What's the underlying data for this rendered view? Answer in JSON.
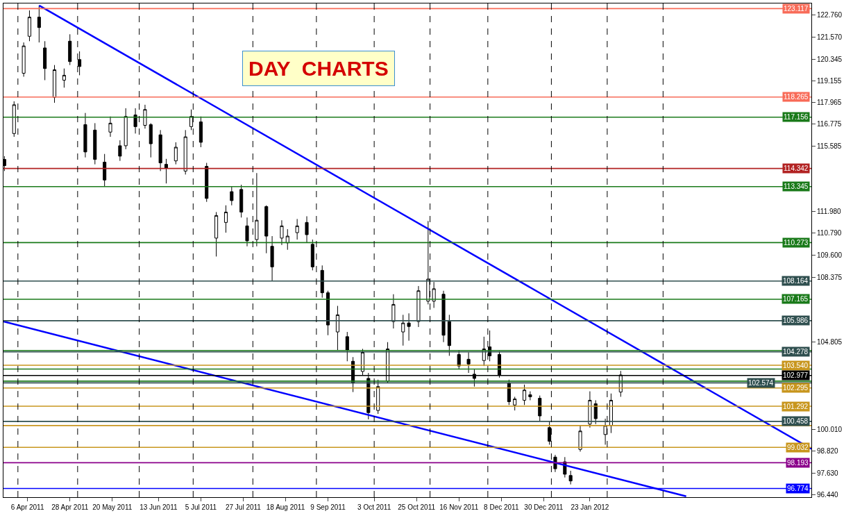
{
  "chart_data": {
    "type": "candlestick",
    "annotations": [
      "DAY  CHARTS"
    ],
    "xlim": [
      "2011-03-24T12:00",
      "2012-05-17"
    ],
    "xticks": [
      {
        "value": "2011-04-06",
        "label": "6 Apr 2011"
      },
      {
        "value": "2011-04-28",
        "label": "28 Apr 2011"
      },
      {
        "value": "2011-05-20",
        "label": "20 May 2011"
      },
      {
        "value": "2011-06-13",
        "label": "13 Jun 2011"
      },
      {
        "value": "2011-07-05",
        "label": "5 Jul 2011"
      },
      {
        "value": "2011-07-27",
        "label": "27 Jul 2011"
      },
      {
        "value": "2011-08-18",
        "label": "18 Aug 2011"
      },
      {
        "value": "2011-09-09",
        "label": "9 Sep 2011"
      },
      {
        "value": "2011-10-03",
        "label": "3 Oct 2011"
      },
      {
        "value": "2011-10-25",
        "label": "25 Oct 2011"
      },
      {
        "value": "2011-11-16",
        "label": "16 Nov 2011"
      },
      {
        "value": "2011-12-08",
        "label": "8 Dec 2011"
      },
      {
        "value": "2011-12-30",
        "label": "30 Dec 2011"
      },
      {
        "value": "2012-01-23",
        "label": "23 Jan 2012"
      }
    ],
    "ylim": [
      96.3,
      123.4
    ],
    "yticks": [
      {
        "value": 122.76,
        "label": "122.760"
      },
      {
        "value": 121.57,
        "label": "121.570"
      },
      120.345,
      119.155,
      117.965,
      116.775,
      115.585,
      {
        "value": 111.98,
        "label": "111.980"
      },
      {
        "value": 110.79,
        "label": "110.790"
      },
      {
        "value": 109.6,
        "label": "109.600"
      },
      108.375,
      104.805,
      {
        "value": 100.01,
        "label": "100.010"
      },
      {
        "value": 98.82,
        "label": "98.820"
      },
      {
        "value": 97.63,
        "label": "97.630"
      },
      {
        "value": 96.44,
        "label": "96.440"
      }
    ],
    "series": [
      {
        "type": "line",
        "color": "#0000ff",
        "x": [
          "2011-04-12",
          "2012-05-17"
        ],
        "values": [
          123.29,
          98.95
        ]
      },
      {
        "type": "line",
        "color": "#0000ff",
        "x": [
          "2011-03-24T12:00",
          "2012-03-13"
        ],
        "values": [
          105.94,
          96.35
        ]
      },
      {
        "color": "#000000",
        "x": [
          "2011-03-25",
          "2011-03-30",
          "2011-04-04",
          "2011-04-07",
          "2011-04-12",
          "2011-04-15",
          "2011-04-20",
          "2011-04-25",
          "2011-04-28",
          "2011-05-03",
          "2011-05-06",
          "2011-05-11",
          "2011-05-16",
          "2011-05-19",
          "2011-05-24",
          "2011-05-27",
          "2011-06-01",
          "2011-06-06",
          "2011-06-09",
          "2011-06-14",
          "2011-06-17",
          "2011-06-22",
          "2011-06-27",
          "2011-06-30",
          "2011-07-05",
          "2011-07-08",
          "2011-07-13",
          "2011-07-18",
          "2011-07-21",
          "2011-07-26",
          "2011-07-29",
          "2011-08-03",
          "2011-08-08",
          "2011-08-11",
          "2011-08-16",
          "2011-08-19",
          "2011-08-24",
          "2011-08-29",
          "2011-09-01",
          "2011-09-06",
          "2011-09-09",
          "2011-09-14",
          "2011-09-19",
          "2011-09-22",
          "2011-09-27",
          "2011-09-30",
          "2011-10-05",
          "2011-10-10",
          "2011-10-13",
          "2011-10-18",
          "2011-10-21",
          "2011-10-26",
          "2011-10-31",
          "2011-11-03",
          "2011-11-08",
          "2011-11-11",
          "2011-11-16",
          "2011-11-21",
          "2011-11-24",
          "2011-11-29",
          "2011-12-02",
          "2011-12-07",
          "2011-12-12",
          "2011-12-15",
          "2011-12-20",
          "2011-12-23",
          "2011-12-28",
          "2012-01-02",
          "2012-01-05",
          "2012-01-10",
          "2012-01-13",
          "2012-01-18",
          "2012-01-23",
          "2012-01-26",
          "2012-01-31",
          "2012-02-03",
          "2012-02-08"
        ],
        "ohlc": [
          [
            114.84,
            115.02,
            114.2,
            114.5
          ],
          [
            116.26,
            118.03,
            116.08,
            117.84
          ],
          [
            119.57,
            121.26,
            119.38,
            121.07
          ],
          [
            121.6,
            123.02,
            121.33,
            122.65
          ],
          [
            122.65,
            123.29,
            121.26,
            122.08
          ],
          [
            120.96,
            121.33,
            119.19,
            119.83
          ],
          [
            118.25,
            120.02,
            117.95,
            119.76
          ],
          [
            119.19,
            119.83,
            118.78,
            119.46
          ],
          [
            121.33,
            121.71,
            120.02,
            120.21
          ],
          [
            120.32,
            120.77,
            119.46,
            119.94
          ],
          [
            116.75,
            117.39,
            114.95,
            115.25
          ],
          [
            116.45,
            116.83,
            114.57,
            114.84
          ],
          [
            114.69,
            115.14,
            113.34,
            113.71
          ],
          [
            116.34,
            117.2,
            116.08,
            116.83
          ],
          [
            115.59,
            115.89,
            114.76,
            115.02
          ],
          [
            115.59,
            117.65,
            115.4,
            117.2
          ],
          [
            117.28,
            117.65,
            116.26,
            116.64
          ],
          [
            116.71,
            117.84,
            116.53,
            117.58
          ],
          [
            116.75,
            116.83,
            114.95,
            115.7
          ],
          [
            116.19,
            116.45,
            114.2,
            114.65
          ],
          [
            114.57,
            114.87,
            113.52,
            114.35
          ],
          [
            114.76,
            115.78,
            114.57,
            115.51
          ],
          [
            114.2,
            116.45,
            114.01,
            116.08
          ],
          [
            116.64,
            117.58,
            116.45,
            117.2
          ],
          [
            116.9,
            117.2,
            115.51,
            115.78
          ],
          [
            114.46,
            114.65,
            112.51,
            112.7
          ],
          [
            110.52,
            111.95,
            109.51,
            111.76
          ],
          [
            111.38,
            112.32,
            110.82,
            111.95
          ],
          [
            113.07,
            113.37,
            112.32,
            112.58
          ],
          [
            113.19,
            113.45,
            111.65,
            111.95
          ],
          [
            111.19,
            111.65,
            110.07,
            110.37
          ],
          [
            110.44,
            114.09,
            110.07,
            111.5
          ],
          [
            112.25,
            112.32,
            109.69,
            110.63
          ],
          [
            110.07,
            110.63,
            108.19,
            108.94
          ],
          [
            110.52,
            111.5,
            110.14,
            111.19
          ],
          [
            110.26,
            111.01,
            109.88,
            110.63
          ],
          [
            110.82,
            111.57,
            110.44,
            111.19
          ],
          [
            111.38,
            111.72,
            110.26,
            110.71
          ],
          [
            110.18,
            110.44,
            108.75,
            108.94
          ],
          [
            108.75,
            109.02,
            107.25,
            107.52
          ],
          [
            107.52,
            107.63,
            105.19,
            105.75
          ],
          [
            105.37,
            106.8,
            104.36,
            106.31
          ],
          [
            105.11,
            105.37,
            103.76,
            104.36
          ],
          [
            103.76,
            103.99,
            102.07,
            102.56
          ],
          [
            103.2,
            104.44,
            103.01,
            104.25
          ],
          [
            102.82,
            103.12,
            100.57,
            100.94
          ],
          [
            101.06,
            102.75,
            100.87,
            102.37
          ],
          [
            102.67,
            104.81,
            102.56,
            104.44
          ],
          [
            105.94,
            107.44,
            105.56,
            106.88
          ],
          [
            105.37,
            106.31,
            104.62,
            105.86
          ],
          [
            105.86,
            106.39,
            104.89,
            105.67
          ],
          [
            105.94,
            107.89,
            105.64,
            107.63
          ],
          [
            107.06,
            111.46,
            106.88,
            108.27
          ],
          [
            107.06,
            108.11,
            106.69,
            107.74
          ],
          [
            107.44,
            107.63,
            104.81,
            105.19
          ],
          [
            105.94,
            106.31,
            104.06,
            104.62
          ],
          [
            104.13,
            104.36,
            103.31,
            103.5
          ],
          [
            103.87,
            104.25,
            103.12,
            103.61
          ],
          [
            103.05,
            103.31,
            102.37,
            102.82
          ],
          [
            103.8,
            105.11,
            103.5,
            104.44
          ],
          [
            104.55,
            105.45,
            103.76,
            104.06
          ],
          [
            104.13,
            104.32,
            102.86,
            103.01
          ],
          [
            102.56,
            102.75,
            101.36,
            101.54
          ],
          [
            101.36,
            101.81,
            101.06,
            101.69
          ],
          [
            101.62,
            102.48,
            101.36,
            102.18
          ],
          [
            101.92,
            102.11,
            101.62,
            101.81
          ],
          [
            101.73,
            101.88,
            100.49,
            100.76
          ],
          [
            100.12,
            100.49,
            99.18,
            99.37
          ],
          [
            98.5,
            98.62,
            97.68,
            97.86
          ],
          [
            98.24,
            98.5,
            97.38,
            97.56
          ],
          [
            97.49,
            97.75,
            97.0,
            97.19
          ],
          [
            98.92,
            100.23,
            98.8,
            99.93
          ],
          [
            100.31,
            102.11,
            100.12,
            101.62
          ],
          [
            101.43,
            101.62,
            100.31,
            100.61
          ],
          [
            99.74,
            100.61,
            99.18,
            100.23
          ],
          [
            100.23,
            101.99,
            99.82,
            101.62
          ],
          [
            102.07,
            103.23,
            101.81,
            103.01
          ]
        ]
      }
    ],
    "ref_lines": [
      {
        "axis": "y",
        "value": 123.117,
        "label": "123.117",
        "color": "#f86b58"
      },
      {
        "axis": "y",
        "value": 118.265,
        "label": "118.265",
        "color": "#f86b58"
      },
      {
        "axis": "y",
        "value": 117.156,
        "label": "117.156",
        "color": "#1a7a1a"
      },
      {
        "axis": "y",
        "value": 114.342,
        "label": "114.342",
        "color": "#b22222"
      },
      {
        "axis": "y",
        "value": 113.345,
        "label": "113.345",
        "color": "#1a7a1a"
      },
      {
        "axis": "y",
        "value": 110.273,
        "label": "110.273",
        "color": "#1a7a1a"
      },
      {
        "axis": "y",
        "value": 108.164,
        "label": "108.164",
        "color": "#2f4f4f"
      },
      {
        "axis": "y",
        "value": 107.165,
        "label": "107.165",
        "color": "#1a7a1a"
      },
      {
        "axis": "y",
        "value": 105.986,
        "label": "105.986",
        "color": "#2f4f4f"
      },
      {
        "axis": "y",
        "value": 104.35,
        "color": "#1a7a1a"
      },
      {
        "axis": "y",
        "value": 104.278,
        "label": "104.278",
        "color": "#2f4f4f"
      },
      {
        "axis": "y",
        "value": 103.54,
        "label": "103.540",
        "color": "#c8961e"
      },
      {
        "axis": "y",
        "value": 103.33,
        "color": "#1a7a1a"
      },
      {
        "axis": "y",
        "value": 102.977,
        "label": "102.977",
        "color": "#000000"
      },
      {
        "axis": "y",
        "value": 102.67,
        "color": "#1a7a1a"
      },
      {
        "axis": "y",
        "value": 102.574,
        "label": "102.574",
        "color": "#2f4f4f"
      },
      {
        "axis": "y",
        "value": 102.295,
        "label": "102.295",
        "color": "#c8961e"
      },
      {
        "axis": "y",
        "value": 101.292,
        "label": "101.292",
        "color": "#c8961e"
      },
      {
        "axis": "y",
        "value": 100.458,
        "label": "100.458",
        "color": "#2f4f4f"
      },
      {
        "axis": "y",
        "value": 100.23,
        "color": "#c8961e"
      },
      {
        "axis": "y",
        "value": 99.032,
        "label": "99.032",
        "color": "#c8961e"
      },
      {
        "axis": "y",
        "value": 98.193,
        "label": "98.193",
        "color": "#8b008b"
      },
      {
        "axis": "y",
        "value": 96.774,
        "label": "96.774",
        "color": "#0000ff"
      },
      {
        "axis": "x",
        "value": "2011-04-01",
        "color": "#000000",
        "line_style": "dashed"
      },
      {
        "axis": "x",
        "value": "2011-05-02",
        "color": "#000000",
        "line_style": "dashed"
      },
      {
        "axis": "x",
        "value": "2011-06-03",
        "color": "#000000",
        "line_style": "dashed"
      },
      {
        "axis": "x",
        "value": "2011-07-01",
        "color": "#000000",
        "line_style": "dashed"
      },
      {
        "axis": "x",
        "value": "2011-08-01",
        "color": "#000000",
        "line_style": "dashed"
      },
      {
        "axis": "x",
        "value": "2011-09-03",
        "color": "#000000",
        "line_style": "dashed"
      },
      {
        "axis": "x",
        "value": "2011-10-03",
        "color": "#000000",
        "line_style": "dashed"
      },
      {
        "axis": "x",
        "value": "2011-11-01",
        "color": "#000000",
        "line_style": "dashed"
      },
      {
        "axis": "x",
        "value": "2011-12-01",
        "color": "#000000",
        "line_style": "dashed"
      },
      {
        "axis": "x",
        "value": "2012-01-03",
        "color": "#000000",
        "line_style": "dashed"
      },
      {
        "axis": "x",
        "value": "2012-02-01",
        "color": "#000000",
        "line_style": "dashed"
      },
      {
        "axis": "x",
        "value": "2012-03-01",
        "color": "#000000",
        "line_style": "dashed"
      }
    ]
  }
}
